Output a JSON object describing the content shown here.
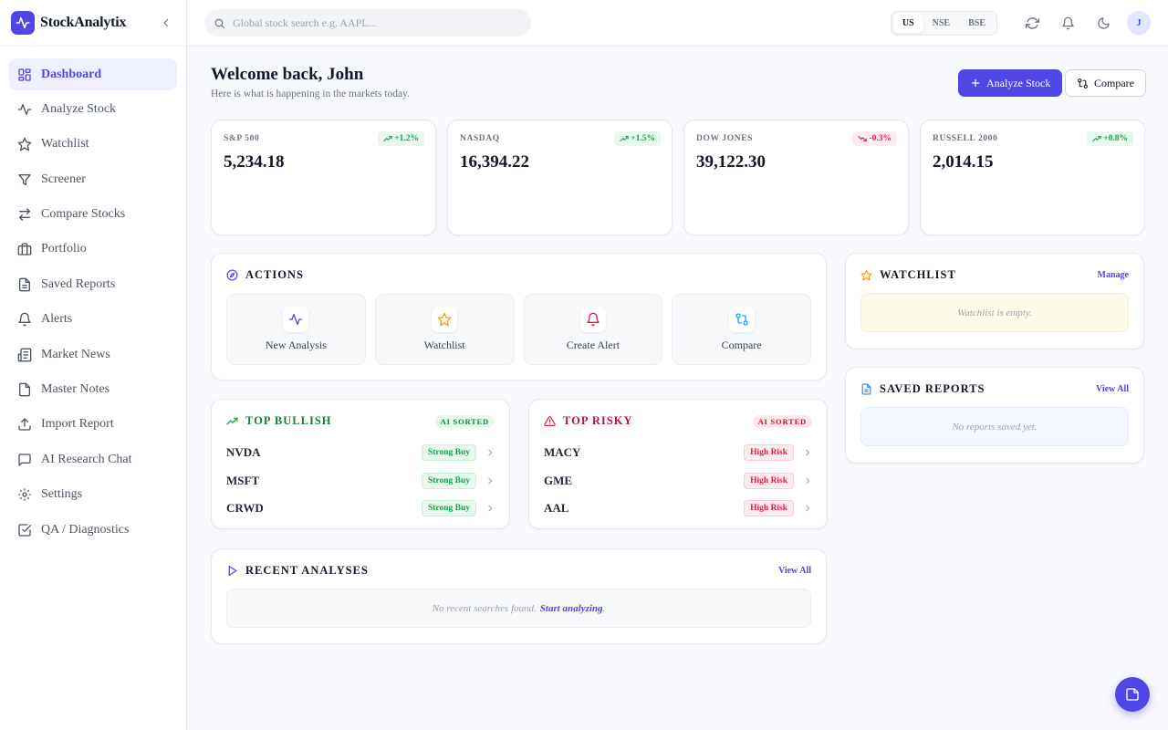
{
  "brand": {
    "name": "StockAnalytix"
  },
  "sidebar": {
    "items": [
      {
        "label": "Dashboard",
        "icon": "dashboard-icon",
        "active": true
      },
      {
        "label": "Analyze Stock",
        "icon": "activity-icon"
      },
      {
        "label": "Watchlist",
        "icon": "star-icon"
      },
      {
        "label": "Screener",
        "icon": "filter-icon"
      },
      {
        "label": "Compare Stocks",
        "icon": "arrows-left-right-icon"
      },
      {
        "label": "Portfolio",
        "icon": "briefcase-icon"
      },
      {
        "label": "Saved Reports",
        "icon": "file-text-icon"
      },
      {
        "label": "Alerts",
        "icon": "bell-icon"
      },
      {
        "label": "Market News",
        "icon": "newspaper-icon"
      },
      {
        "label": "Master Notes",
        "icon": "file-icon"
      },
      {
        "label": "Import Report",
        "icon": "upload-icon"
      },
      {
        "label": "AI Research Chat",
        "icon": "message-square-icon"
      },
      {
        "label": "Settings",
        "icon": "gear-icon"
      },
      {
        "label": "QA / Diagnostics",
        "icon": "check-square-icon"
      }
    ]
  },
  "topbar": {
    "search_placeholder": "Global stock search e.g. AAPL...",
    "markets": [
      "US",
      "NSE",
      "BSE"
    ],
    "selected_market": "US",
    "avatar_initial": "J"
  },
  "welcome": {
    "title": "Welcome back, John",
    "subtitle": "Here is what is happening in the markets today.",
    "analyze_button": "Analyze Stock",
    "compare_button": "Compare"
  },
  "indices": [
    {
      "name": "S&P 500",
      "value": "5,234.18",
      "change": "+1.2%",
      "direction": "up"
    },
    {
      "name": "NASDAQ",
      "value": "16,394.22",
      "change": "+1.5%",
      "direction": "up"
    },
    {
      "name": "DOW JONES",
      "value": "39,122.30",
      "change": "-0.3%",
      "direction": "down"
    },
    {
      "name": "RUSSELL 2000",
      "value": "2,014.15",
      "change": "+0.8%",
      "direction": "up"
    }
  ],
  "actions": {
    "title": "ACTIONS",
    "tiles": [
      {
        "label": "New Analysis",
        "icon": "activity-icon"
      },
      {
        "label": "Watchlist",
        "icon": "star-icon"
      },
      {
        "label": "Create Alert",
        "icon": "bell-icon"
      },
      {
        "label": "Compare",
        "icon": "git-compare-icon"
      }
    ]
  },
  "bullish": {
    "title": "TOP BULLISH",
    "badge": "AI SORTED",
    "rows": [
      {
        "ticker": "NVDA",
        "tag": "Strong Buy"
      },
      {
        "ticker": "MSFT",
        "tag": "Strong Buy"
      },
      {
        "ticker": "CRWD",
        "tag": "Strong Buy"
      }
    ]
  },
  "risky": {
    "title": "TOP RISKY",
    "badge": "AI SORTED",
    "rows": [
      {
        "ticker": "MACY",
        "tag": "High Risk"
      },
      {
        "ticker": "GME",
        "tag": "High Risk"
      },
      {
        "ticker": "AAL",
        "tag": "High Risk"
      }
    ]
  },
  "recent": {
    "title": "RECENT ANALYSES",
    "link": "View All",
    "empty_text": "No recent searches found.",
    "empty_link": "Start analyzing"
  },
  "watchlist": {
    "title": "WATCHLIST",
    "link": "Manage",
    "empty_text": "Watchlist is empty."
  },
  "saved_reports": {
    "title": "SAVED REPORTS",
    "link": "View All",
    "empty_text": "No reports saved yet."
  },
  "colors": {
    "accent": "#4f46e5",
    "positive": "#16a34a",
    "negative": "#e11d48",
    "warning": "#f59e0b"
  }
}
